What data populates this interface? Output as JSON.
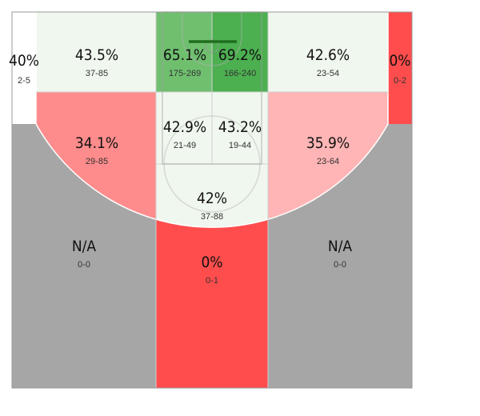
{
  "colors": {
    "hot": "#ff4d4d",
    "warm": "#ff8c8c",
    "light_warm": "#ffb5b5",
    "neutral": "#f0f7ee",
    "cool_mid": "#6fbf6f",
    "cool_strong": "#4caf50",
    "empty": "#a6a6a6",
    "white": "#ffffff"
  },
  "chart_data": {
    "type": "heatmap",
    "zones": [
      {
        "id": "left-corner-three",
        "pct": "40%",
        "fga": "2-5",
        "made": 2,
        "attempts": 5,
        "color": "white"
      },
      {
        "id": "left-wing-baseline-mid",
        "pct": "43.5%",
        "fga": "37-85",
        "made": 37,
        "attempts": 85,
        "color": "neutral"
      },
      {
        "id": "paint-left-restricted",
        "pct": "65.1%",
        "fga": "175-269",
        "made": 175,
        "attempts": 269,
        "color": "cool_mid"
      },
      {
        "id": "paint-right-restricted",
        "pct": "69.2%",
        "fga": "166-240",
        "made": 166,
        "attempts": 240,
        "color": "cool_strong"
      },
      {
        "id": "right-wing-baseline-mid",
        "pct": "42.6%",
        "fga": "23-54",
        "made": 23,
        "attempts": 54,
        "color": "neutral"
      },
      {
        "id": "right-corner-three",
        "pct": "0%",
        "fga": "0-2",
        "made": 0,
        "attempts": 2,
        "color": "hot"
      },
      {
        "id": "left-elbow-mid",
        "pct": "34.1%",
        "fga": "29-85",
        "made": 29,
        "attempts": 85,
        "color": "warm"
      },
      {
        "id": "paint-left-non-ra",
        "pct": "42.9%",
        "fga": "21-49",
        "made": 21,
        "attempts": 49,
        "color": "neutral"
      },
      {
        "id": "paint-right-non-ra",
        "pct": "43.2%",
        "fga": "19-44",
        "made": 19,
        "attempts": 44,
        "color": "neutral"
      },
      {
        "id": "right-elbow-mid",
        "pct": "35.9%",
        "fga": "23-64",
        "made": 23,
        "attempts": 64,
        "color": "light_warm"
      },
      {
        "id": "top-key-mid",
        "pct": "42%",
        "fga": "37-88",
        "made": 37,
        "attempts": 88,
        "color": "neutral"
      },
      {
        "id": "left-wing-three",
        "pct": "N/A",
        "fga": "0-0",
        "made": 0,
        "attempts": 0,
        "color": "empty"
      },
      {
        "id": "top-three",
        "pct": "0%",
        "fga": "0-1",
        "made": 0,
        "attempts": 1,
        "color": "hot"
      },
      {
        "id": "right-wing-three",
        "pct": "N/A",
        "fga": "0-0",
        "made": 0,
        "attempts": 0,
        "color": "empty"
      }
    ]
  }
}
